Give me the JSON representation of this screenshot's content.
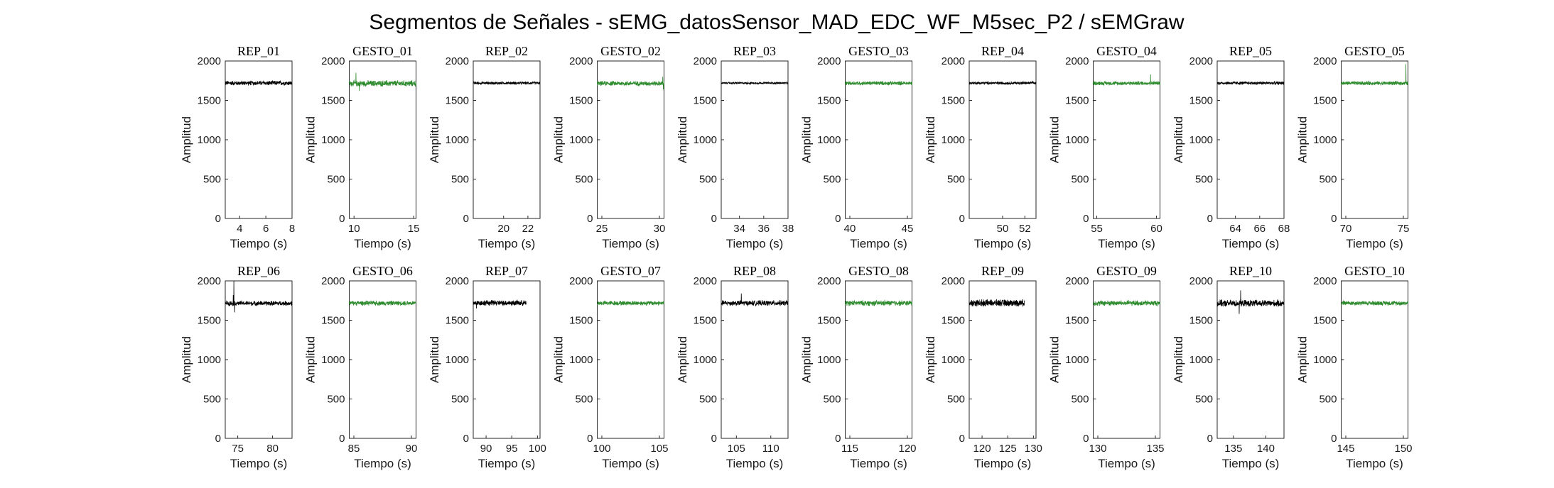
{
  "figure": {
    "title": "Segmentos de Señales - sEMG_datosSensor_MAD_EDC_WF_M5sec_P2 / sEMGraw"
  },
  "colors": {
    "rep": "#000000",
    "gesto": "#2e8b2e",
    "axes": "#262626"
  },
  "chart_data": [
    {
      "type": "line",
      "title": "REP_01",
      "kind": "rep",
      "xlabel": "Tiempo (s)",
      "ylabel": "Amplitud",
      "xlim": [
        2.9,
        8.0
      ],
      "ylim": [
        0,
        2000
      ],
      "xticks": [
        4,
        6,
        8
      ],
      "yticks": [
        0,
        500,
        1000,
        1500,
        2000
      ],
      "series": [
        {
          "mean": 1720,
          "spread": 35,
          "spikes": []
        }
      ]
    },
    {
      "type": "line",
      "title": "GESTO_01",
      "kind": "gesto",
      "xlabel": "Tiempo (s)",
      "ylabel": "Amplitud",
      "xlim": [
        9.6,
        15.2
      ],
      "ylim": [
        0,
        2000
      ],
      "xticks": [
        10,
        15
      ],
      "yticks": [
        0,
        500,
        1000,
        1500,
        2000
      ],
      "series": [
        {
          "mean": 1715,
          "spread": 45,
          "spikes": [
            [
              0.1,
              1850
            ],
            [
              0.15,
              1620
            ]
          ]
        }
      ]
    },
    {
      "type": "line",
      "title": "REP_02",
      "kind": "rep",
      "xlabel": "Tiempo (s)",
      "ylabel": "Amplitud",
      "xlim": [
        17.5,
        23.0
      ],
      "ylim": [
        0,
        2000
      ],
      "xticks": [
        20,
        22
      ],
      "yticks": [
        0,
        500,
        1000,
        1500,
        2000
      ],
      "series": [
        {
          "mean": 1720,
          "spread": 22,
          "spikes": []
        }
      ]
    },
    {
      "type": "line",
      "title": "GESTO_02",
      "kind": "gesto",
      "xlabel": "Tiempo (s)",
      "ylabel": "Amplitud",
      "xlim": [
        24.6,
        30.4
      ],
      "ylim": [
        0,
        2000
      ],
      "xticks": [
        25,
        30
      ],
      "yticks": [
        0,
        500,
        1000,
        1500,
        2000
      ],
      "series": [
        {
          "mean": 1715,
          "spread": 35,
          "spikes": [
            [
              0.98,
              1800
            ],
            [
              0.99,
              1640
            ]
          ]
        }
      ]
    },
    {
      "type": "line",
      "title": "REP_03",
      "kind": "rep",
      "xlabel": "Tiempo (s)",
      "ylabel": "Amplitud",
      "xlim": [
        32.5,
        38.0
      ],
      "ylim": [
        0,
        2000
      ],
      "xticks": [
        34,
        36,
        38
      ],
      "yticks": [
        0,
        500,
        1000,
        1500,
        2000
      ],
      "series": [
        {
          "mean": 1720,
          "spread": 15,
          "spikes": []
        }
      ]
    },
    {
      "type": "line",
      "title": "GESTO_03",
      "kind": "gesto",
      "xlabel": "Tiempo (s)",
      "ylabel": "Amplitud",
      "xlim": [
        39.6,
        45.4
      ],
      "ylim": [
        0,
        2000
      ],
      "xticks": [
        40,
        45
      ],
      "yticks": [
        0,
        500,
        1000,
        1500,
        2000
      ],
      "series": [
        {
          "mean": 1718,
          "spread": 30,
          "spikes": []
        }
      ]
    },
    {
      "type": "line",
      "title": "REP_04",
      "kind": "rep",
      "xlabel": "Tiempo (s)",
      "ylabel": "Amplitud",
      "xlim": [
        47.0,
        53.0
      ],
      "ylim": [
        0,
        2000
      ],
      "xticks": [
        50,
        52
      ],
      "yticks": [
        0,
        500,
        1000,
        1500,
        2000
      ],
      "series": [
        {
          "mean": 1720,
          "spread": 22,
          "spikes": []
        }
      ]
    },
    {
      "type": "line",
      "title": "GESTO_04",
      "kind": "gesto",
      "xlabel": "Tiempo (s)",
      "ylabel": "Amplitud",
      "xlim": [
        54.7,
        60.3
      ],
      "ylim": [
        0,
        2000
      ],
      "xticks": [
        55,
        60
      ],
      "yticks": [
        0,
        500,
        1000,
        1500,
        2000
      ],
      "series": [
        {
          "mean": 1718,
          "spread": 30,
          "spikes": [
            [
              0.86,
              1830
            ]
          ]
        }
      ]
    },
    {
      "type": "line",
      "title": "REP_05",
      "kind": "rep",
      "xlabel": "Tiempo (s)",
      "ylabel": "Amplitud",
      "xlim": [
        62.5,
        68.0
      ],
      "ylim": [
        0,
        2000
      ],
      "xticks": [
        64,
        66,
        68
      ],
      "yticks": [
        0,
        500,
        1000,
        1500,
        2000
      ],
      "series": [
        {
          "mean": 1720,
          "spread": 25,
          "spikes": []
        }
      ]
    },
    {
      "type": "line",
      "title": "GESTO_05",
      "kind": "gesto",
      "xlabel": "Tiempo (s)",
      "ylabel": "Amplitud",
      "xlim": [
        69.6,
        75.4
      ],
      "ylim": [
        0,
        2000
      ],
      "xticks": [
        70,
        75
      ],
      "yticks": [
        0,
        500,
        1000,
        1500,
        2000
      ],
      "series": [
        {
          "mean": 1718,
          "spread": 30,
          "spikes": [
            [
              0.97,
              1960
            ]
          ]
        }
      ]
    },
    {
      "type": "line",
      "title": "REP_06",
      "kind": "rep",
      "xlabel": "Tiempo (s)",
      "ylabel": "Amplitud",
      "xlim": [
        73.2,
        82.8
      ],
      "ylim": [
        0,
        2000
      ],
      "xticks": [
        75,
        80
      ],
      "yticks": [
        0,
        500,
        1000,
        1500,
        2000
      ],
      "series": [
        {
          "mean": 1715,
          "spread": 35,
          "spikes": [
            [
              0.13,
              2000
            ],
            [
              0.14,
              1600
            ],
            [
              0.12,
              1820
            ]
          ]
        }
      ]
    },
    {
      "type": "line",
      "title": "GESTO_06",
      "kind": "gesto",
      "xlabel": "Tiempo (s)",
      "ylabel": "Amplitud",
      "xlim": [
        84.6,
        90.4
      ],
      "ylim": [
        0,
        2000
      ],
      "xticks": [
        85,
        90
      ],
      "yticks": [
        0,
        500,
        1000,
        1500,
        2000
      ],
      "series": [
        {
          "mean": 1718,
          "spread": 35,
          "spikes": []
        }
      ]
    },
    {
      "type": "line",
      "title": "REP_07",
      "kind": "rep",
      "xlabel": "Tiempo (s)",
      "ylabel": "Amplitud",
      "xlim": [
        87.5,
        100.5
      ],
      "ylim": [
        0,
        2000
      ],
      "xticks": [
        90,
        95,
        100
      ],
      "yticks": [
        0,
        500,
        1000,
        1500,
        2000
      ],
      "series": [
        {
          "mean": 1720,
          "spread": 40,
          "xend": 97.8,
          "spikes": [
            [
              0.06,
              1650
            ]
          ]
        }
      ]
    },
    {
      "type": "line",
      "title": "GESTO_07",
      "kind": "gesto",
      "xlabel": "Tiempo (s)",
      "ylabel": "Amplitud",
      "xlim": [
        99.6,
        105.4
      ],
      "ylim": [
        0,
        2000
      ],
      "xticks": [
        100,
        105
      ],
      "yticks": [
        0,
        500,
        1000,
        1500,
        2000
      ],
      "series": [
        {
          "mean": 1718,
          "spread": 35,
          "spikes": []
        }
      ]
    },
    {
      "type": "line",
      "title": "REP_08",
      "kind": "rep",
      "xlabel": "Tiempo (s)",
      "ylabel": "Amplitud",
      "xlim": [
        102.8,
        112.5
      ],
      "ylim": [
        0,
        2000
      ],
      "xticks": [
        105,
        110
      ],
      "yticks": [
        0,
        500,
        1000,
        1500,
        2000
      ],
      "series": [
        {
          "mean": 1718,
          "spread": 40,
          "spikes": [
            [
              0.3,
              1840
            ]
          ]
        }
      ]
    },
    {
      "type": "line",
      "title": "GESTO_08",
      "kind": "gesto",
      "xlabel": "Tiempo (s)",
      "ylabel": "Amplitud",
      "xlim": [
        114.6,
        120.4
      ],
      "ylim": [
        0,
        2000
      ],
      "xticks": [
        115,
        120
      ],
      "yticks": [
        0,
        500,
        1000,
        1500,
        2000
      ],
      "series": [
        {
          "mean": 1718,
          "spread": 40,
          "spikes": []
        }
      ]
    },
    {
      "type": "line",
      "title": "REP_09",
      "kind": "rep",
      "xlabel": "Tiempo (s)",
      "ylabel": "Amplitud",
      "xlim": [
        117.5,
        130.5
      ],
      "ylim": [
        0,
        2000
      ],
      "xticks": [
        120,
        125,
        130
      ],
      "yticks": [
        0,
        500,
        1000,
        1500,
        2000
      ],
      "series": [
        {
          "mean": 1720,
          "spread": 50,
          "xend": 128.3,
          "spikes": []
        }
      ]
    },
    {
      "type": "line",
      "title": "GESTO_09",
      "kind": "gesto",
      "xlabel": "Tiempo (s)",
      "ylabel": "Amplitud",
      "xlim": [
        129.6,
        135.4
      ],
      "ylim": [
        0,
        2000
      ],
      "xticks": [
        130,
        135
      ],
      "yticks": [
        0,
        500,
        1000,
        1500,
        2000
      ],
      "series": [
        {
          "mean": 1718,
          "spread": 40,
          "spikes": []
        }
      ]
    },
    {
      "type": "line",
      "title": "REP_10",
      "kind": "rep",
      "xlabel": "Tiempo (s)",
      "ylabel": "Amplitud",
      "xlim": [
        132.5,
        142.8
      ],
      "ylim": [
        0,
        2000
      ],
      "xticks": [
        135,
        140
      ],
      "yticks": [
        0,
        500,
        1000,
        1500,
        2000
      ],
      "series": [
        {
          "mean": 1715,
          "spread": 50,
          "spikes": [
            [
              0.35,
              1880
            ],
            [
              0.33,
              1580
            ]
          ]
        }
      ]
    },
    {
      "type": "line",
      "title": "GESTO_10",
      "kind": "gesto",
      "xlabel": "Tiempo (s)",
      "ylabel": "Amplitud",
      "xlim": [
        144.6,
        150.4
      ],
      "ylim": [
        0,
        2000
      ],
      "xticks": [
        145,
        150
      ],
      "yticks": [
        0,
        500,
        1000,
        1500,
        2000
      ],
      "series": [
        {
          "mean": 1718,
          "spread": 35,
          "spikes": []
        }
      ]
    }
  ]
}
